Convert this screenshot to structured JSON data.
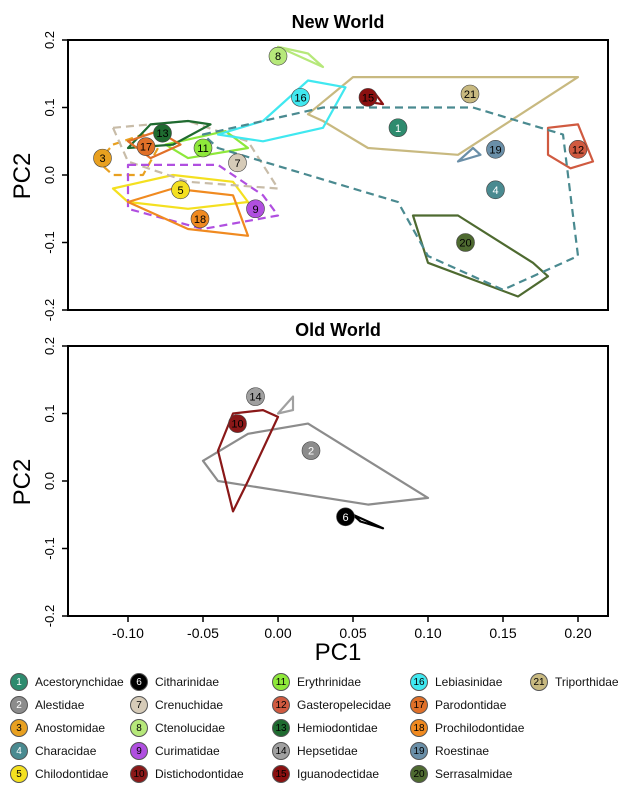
{
  "chart_data": [
    {
      "type": "scatter",
      "title": "New World",
      "xlabel": "",
      "ylabel": "PC2",
      "xlim": [
        -0.14,
        0.22
      ],
      "ylim": [
        -0.2,
        0.2
      ],
      "xticks": [],
      "yticks": [
        "-0.2",
        "-0.1",
        "0.0",
        "0.1",
        "0.2"
      ],
      "groups": [
        {
          "id": "1",
          "x": 0.08,
          "y": 0.07,
          "color": "#2e8b6e",
          "hull": [
            [
              0.02,
              0.09
            ],
            [
              0.05,
              0.145
            ],
            [
              0.2,
              0.145
            ],
            [
              0.12,
              0.03
            ],
            [
              0.06,
              0.04
            ],
            [
              0.03,
              0.08
            ]
          ],
          "style": "solid",
          "hullColor": "#c8b980"
        },
        {
          "id": "3",
          "x": -0.117,
          "y": 0.025,
          "color": "#e8a020",
          "hull": [
            [
              -0.11,
              0.045
            ],
            [
              -0.09,
              0.06
            ],
            [
              -0.08,
              0.04
            ],
            [
              -0.09,
              0.0
            ],
            [
              -0.11,
              0.0
            ],
            [
              -0.12,
              0.02
            ]
          ],
          "style": "dashed",
          "hullColor": "#e8a020"
        },
        {
          "id": "4",
          "x": 0.145,
          "y": -0.022,
          "color": "#4a8a90",
          "hull": null
        },
        {
          "id": "5",
          "x": -0.065,
          "y": -0.022,
          "color": "#f4e020",
          "hull": [
            [
              -0.11,
              -0.02
            ],
            [
              -0.07,
              0.0
            ],
            [
              -0.03,
              -0.01
            ],
            [
              -0.02,
              -0.04
            ],
            [
              -0.06,
              -0.05
            ],
            [
              -0.1,
              -0.04
            ]
          ],
          "style": "solid",
          "hullColor": "#f4e020"
        },
        {
          "id": "7",
          "x": -0.027,
          "y": 0.018,
          "color": "#d6cbb8",
          "hull": [
            [
              -0.11,
              0.07
            ],
            [
              -0.06,
              0.08
            ],
            [
              -0.02,
              0.05
            ],
            [
              0.0,
              -0.02
            ],
            [
              -0.06,
              -0.01
            ],
            [
              -0.1,
              0.02
            ]
          ],
          "style": "dashed",
          "hullColor": "#c8bca8"
        },
        {
          "id": "8",
          "x": 0.0,
          "y": 0.176,
          "color": "#b6e87a",
          "hull": [
            [
              0.0,
              0.19
            ],
            [
              0.02,
              0.18
            ],
            [
              0.03,
              0.16
            ],
            [
              0.02,
              0.17
            ]
          ],
          "style": "solid",
          "hullColor": "#b6e87a"
        },
        {
          "id": "9",
          "x": -0.015,
          "y": -0.05,
          "color": "#b04fe0",
          "hull": [
            [
              -0.1,
              0.015
            ],
            [
              -0.04,
              0.015
            ],
            [
              -0.01,
              -0.03
            ],
            [
              0.0,
              -0.06
            ],
            [
              -0.05,
              -0.08
            ],
            [
              -0.1,
              -0.05
            ]
          ],
          "style": "dashed",
          "hullColor": "#b04fe0"
        },
        {
          "id": "11",
          "x": -0.05,
          "y": 0.04,
          "color": "#8ee83a",
          "hull": [
            [
              -0.075,
              0.045
            ],
            [
              -0.035,
              0.065
            ],
            [
              -0.02,
              0.04
            ],
            [
              -0.06,
              0.025
            ]
          ],
          "style": "solid",
          "hullColor": "#8ee83a"
        },
        {
          "id": "12",
          "x": 0.2,
          "y": 0.038,
          "color": "#d05a40",
          "hull": [
            [
              0.18,
              0.07
            ],
            [
              0.2,
              0.075
            ],
            [
              0.21,
              0.02
            ],
            [
              0.195,
              0.01
            ],
            [
              0.18,
              0.03
            ]
          ],
          "style": "solid",
          "hullColor": "#d05a40"
        },
        {
          "id": "13",
          "x": -0.077,
          "y": 0.062,
          "color": "#1f6b30",
          "hull": [
            [
              -0.1,
              0.04
            ],
            [
              -0.085,
              0.075
            ],
            [
              -0.06,
              0.08
            ],
            [
              -0.045,
              0.075
            ],
            [
              -0.07,
              0.045
            ]
          ],
          "style": "solid",
          "hullColor": "#1f6b30"
        },
        {
          "id": "15",
          "x": 0.06,
          "y": 0.115,
          "color": "#8a1010",
          "hull": [
            [
              0.055,
              0.11
            ],
            [
              0.065,
              0.12
            ],
            [
              0.07,
              0.105
            ]
          ],
          "style": "solid",
          "hullColor": "#8a1010"
        },
        {
          "id": "16",
          "x": 0.015,
          "y": 0.115,
          "color": "#40e8f0",
          "hull": [
            [
              -0.04,
              0.06
            ],
            [
              -0.01,
              0.08
            ],
            [
              0.02,
              0.14
            ],
            [
              0.045,
              0.13
            ],
            [
              0.03,
              0.07
            ],
            [
              -0.01,
              0.05
            ]
          ],
          "style": "solid",
          "hullColor": "#40e8f0"
        },
        {
          "id": "17",
          "x": -0.088,
          "y": 0.042,
          "color": "#e07028",
          "hull": [
            [
              -0.1,
              0.05
            ],
            [
              -0.08,
              0.065
            ],
            [
              -0.065,
              0.045
            ],
            [
              -0.085,
              0.025
            ]
          ],
          "style": "solid",
          "hullColor": "#e07028"
        },
        {
          "id": "18",
          "x": -0.052,
          "y": -0.065,
          "color": "#f08a20",
          "hull": [
            [
              -0.1,
              -0.04
            ],
            [
              -0.07,
              -0.02
            ],
            [
              -0.03,
              -0.03
            ],
            [
              -0.02,
              -0.09
            ],
            [
              -0.06,
              -0.08
            ]
          ],
          "style": "solid",
          "hullColor": "#f08a20"
        },
        {
          "id": "19",
          "x": 0.145,
          "y": 0.038,
          "color": "#6a8fa8",
          "hull": [
            [
              0.12,
              0.02
            ],
            [
              0.135,
              0.03
            ],
            [
              0.13,
              0.04
            ]
          ],
          "style": "solid",
          "hullColor": "#6a8fa8"
        },
        {
          "id": "20",
          "x": 0.125,
          "y": -0.1,
          "color": "#4e6a30",
          "hull": [
            [
              0.09,
              -0.06
            ],
            [
              0.12,
              -0.06
            ],
            [
              0.17,
              -0.13
            ],
            [
              0.18,
              -0.15
            ],
            [
              0.16,
              -0.18
            ],
            [
              0.1,
              -0.13
            ]
          ],
          "style": "solid",
          "hullColor": "#4e6a30"
        },
        {
          "id": "21",
          "x": 0.128,
          "y": 0.12,
          "color": "#c8b980",
          "hull": null
        },
        {
          "id": "14n",
          "x": null,
          "y": null,
          "color": "#4a8a90",
          "hull": [
            [
              -0.05,
              0.06
            ],
            [
              0.03,
              0.1
            ],
            [
              0.13,
              0.1
            ],
            [
              0.19,
              0.06
            ],
            [
              0.2,
              -0.12
            ],
            [
              0.15,
              -0.17
            ],
            [
              0.1,
              -0.12
            ],
            [
              0.08,
              -0.04
            ],
            [
              0.02,
              0.0
            ],
            [
              -0.04,
              0.04
            ]
          ],
          "style": "dashed",
          "hullColor": "#4a8a90"
        }
      ]
    },
    {
      "type": "scatter",
      "title": "Old World",
      "xlabel": "PC1",
      "ylabel": "PC2",
      "xlim": [
        -0.14,
        0.22
      ],
      "ylim": [
        -0.2,
        0.2
      ],
      "xticks": [
        "-0.10",
        "-0.05",
        "0.00",
        "0.05",
        "0.10",
        "0.15",
        "0.20"
      ],
      "yticks": [
        "-0.2",
        "-0.1",
        "0.0",
        "0.1",
        "0.2"
      ],
      "groups": [
        {
          "id": "2",
          "x": 0.022,
          "y": 0.045,
          "color": "#8c8c8c",
          "hull": [
            [
              -0.05,
              0.03
            ],
            [
              -0.02,
              0.07
            ],
            [
              0.02,
              0.085
            ],
            [
              0.1,
              -0.025
            ],
            [
              0.06,
              -0.035
            ],
            [
              -0.04,
              0.0
            ]
          ],
          "style": "solid",
          "hullColor": "#8c8c8c"
        },
        {
          "id": "6",
          "x": 0.045,
          "y": -0.053,
          "color": "#000000",
          "hull": [
            [
              0.05,
              -0.05
            ],
            [
              0.07,
              -0.07
            ],
            [
              0.055,
              -0.06
            ]
          ],
          "style": "solid",
          "hullColor": "#000000"
        },
        {
          "id": "10",
          "x": -0.027,
          "y": 0.085,
          "color": "#8a1818",
          "hull": [
            [
              -0.04,
              0.045
            ],
            [
              -0.03,
              0.1
            ],
            [
              -0.01,
              0.105
            ],
            [
              0.0,
              0.095
            ],
            [
              -0.02,
              0.0
            ],
            [
              -0.03,
              -0.045
            ]
          ],
          "style": "solid",
          "hullColor": "#8a1818"
        },
        {
          "id": "14",
          "x": -0.015,
          "y": 0.125,
          "color": "#a0a0a0",
          "hull": [
            [
              0.0,
              0.1
            ],
            [
              0.01,
              0.125
            ],
            [
              0.01,
              0.105
            ]
          ],
          "style": "solid",
          "hullColor": "#a0a0a0"
        }
      ]
    }
  ],
  "legend": [
    {
      "num": "1",
      "name": "Acestorynchidae",
      "color": "#2e8b6e",
      "text": "#ffffff"
    },
    {
      "num": "2",
      "name": "Alestidae",
      "color": "#8c8c8c",
      "text": "#ffffff"
    },
    {
      "num": "3",
      "name": "Anostomidae",
      "color": "#e8a020",
      "text": "#000000"
    },
    {
      "num": "4",
      "name": "Characidae",
      "color": "#4a8a90",
      "text": "#ffffff"
    },
    {
      "num": "5",
      "name": "Chilodontidae",
      "color": "#f4e020",
      "text": "#000000"
    },
    {
      "num": "6",
      "name": "Citharinidae",
      "color": "#000000",
      "text": "#ffffff"
    },
    {
      "num": "7",
      "name": "Crenuchidae",
      "color": "#d6cbb8",
      "text": "#000000"
    },
    {
      "num": "8",
      "name": "Ctenolucidae",
      "color": "#b6e87a",
      "text": "#000000"
    },
    {
      "num": "9",
      "name": "Curimatidae",
      "color": "#b04fe0",
      "text": "#000000"
    },
    {
      "num": "10",
      "name": "Distichodontidae",
      "color": "#8a1818",
      "text": "#000000"
    },
    {
      "num": "11",
      "name": "Erythrinidae",
      "color": "#8ee83a",
      "text": "#000000"
    },
    {
      "num": "12",
      "name": "Gasteropelecidae",
      "color": "#d05a40",
      "text": "#000000"
    },
    {
      "num": "13",
      "name": "Hemiodontidae",
      "color": "#1f6b30",
      "text": "#000000"
    },
    {
      "num": "14",
      "name": "Hepsetidae",
      "color": "#a0a0a0",
      "text": "#000000"
    },
    {
      "num": "15",
      "name": "Iguanodectidae",
      "color": "#8a1010",
      "text": "#000000"
    },
    {
      "num": "16",
      "name": "Lebiasinidae",
      "color": "#40e8f0",
      "text": "#000000"
    },
    {
      "num": "17",
      "name": "Parodontidae",
      "color": "#e07028",
      "text": "#000000"
    },
    {
      "num": "18",
      "name": "Prochilodontidae",
      "color": "#f08a20",
      "text": "#000000"
    },
    {
      "num": "19",
      "name": "Roestinae",
      "color": "#6a8fa8",
      "text": "#000000"
    },
    {
      "num": "20",
      "name": "Serrasalmidae",
      "color": "#4e6a30",
      "text": "#000000"
    },
    {
      "num": "21",
      "name": "Triporthidae",
      "color": "#c8b980",
      "text": "#000000"
    }
  ]
}
